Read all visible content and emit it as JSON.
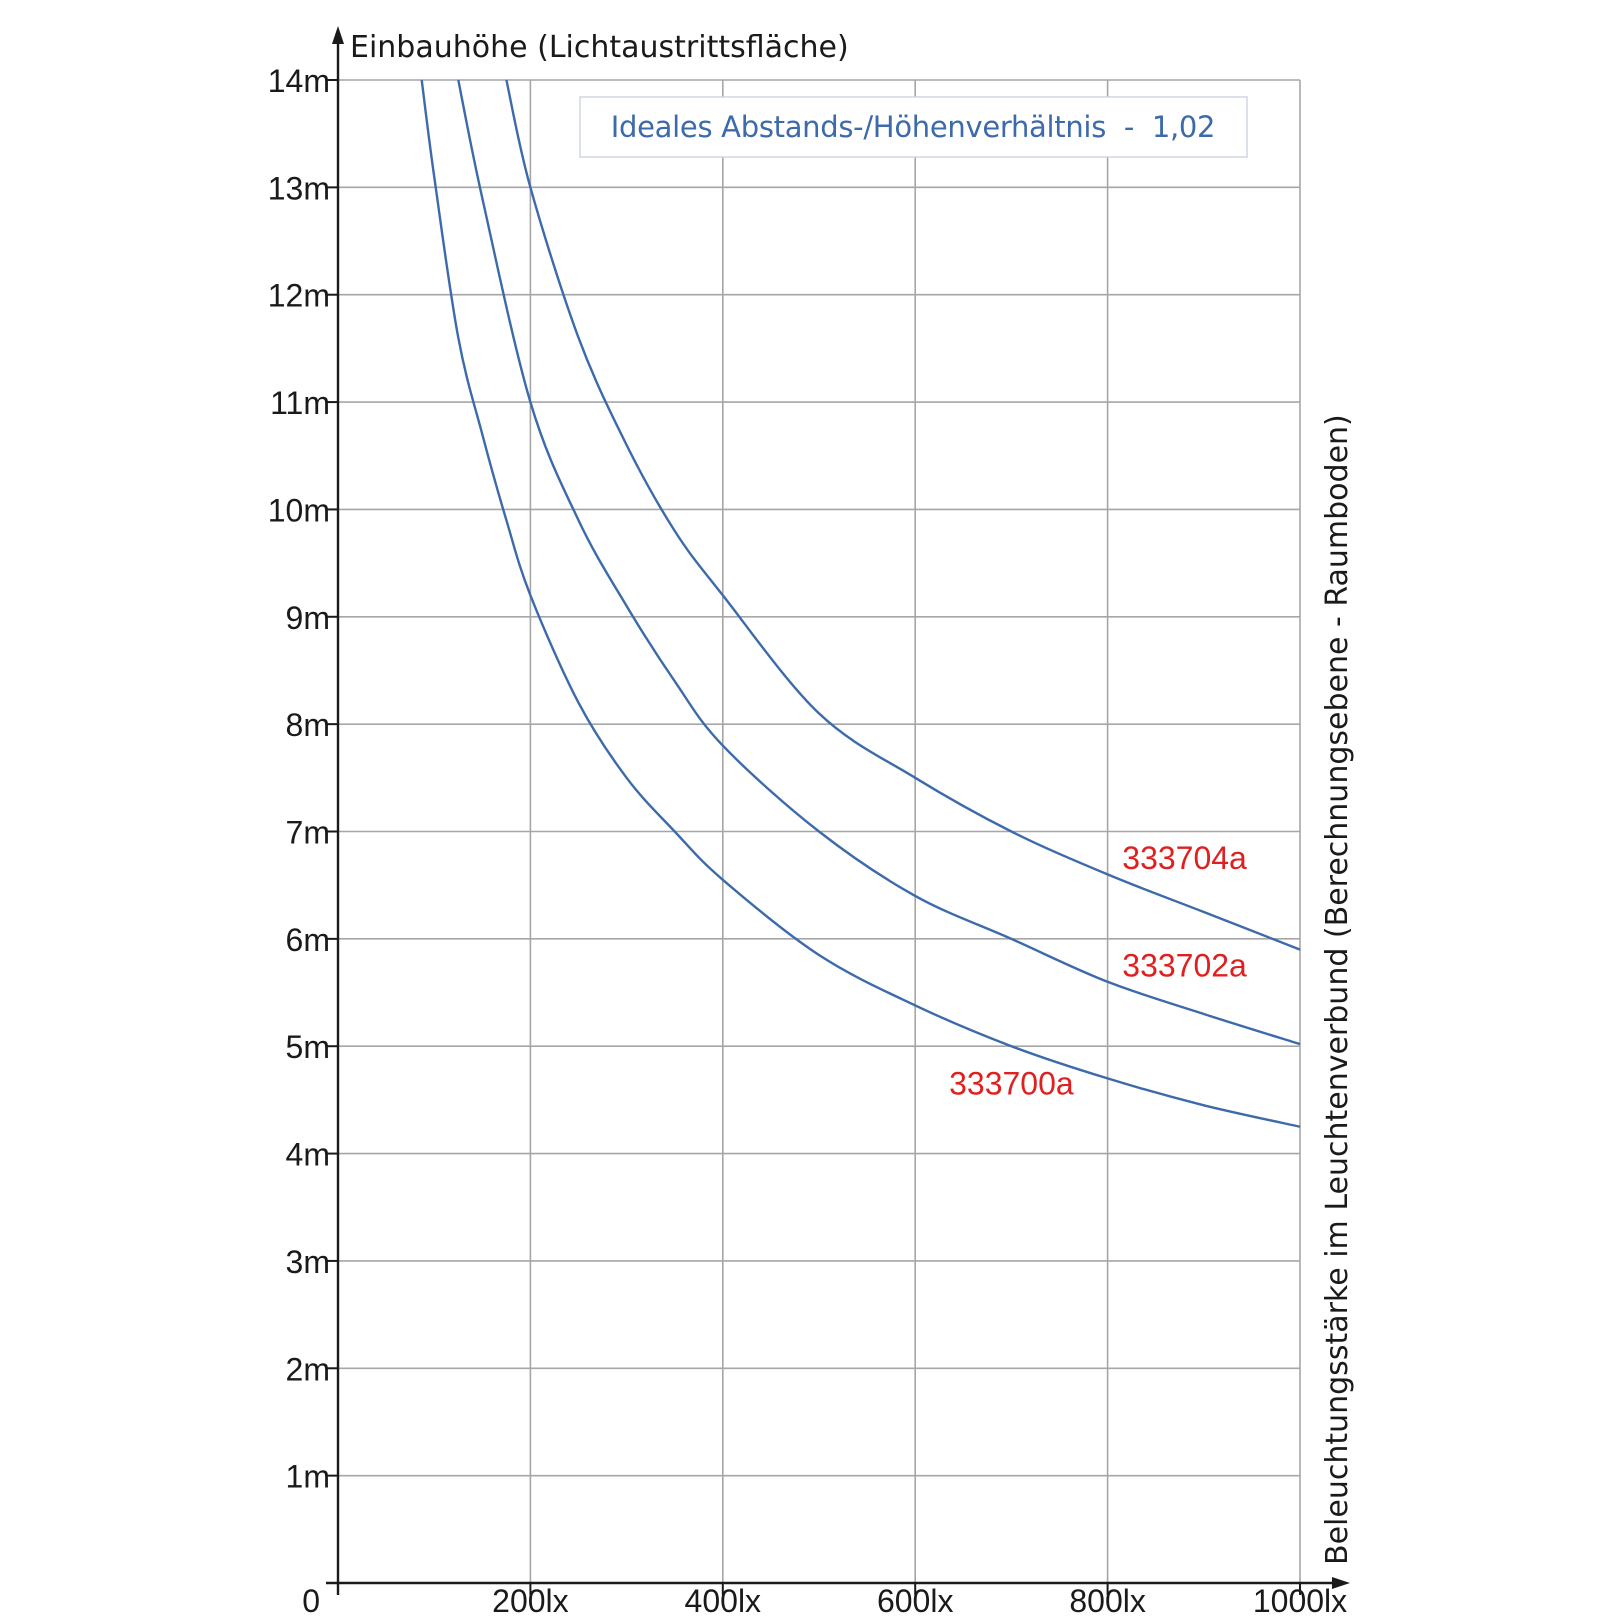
{
  "chart_data": {
    "type": "line",
    "title": "",
    "ylabel": "Einbauhöhe (Lichtaustrittsfläche)",
    "xlabel": "Beleuchtungsstärke im Leuchtenverbund (Berechnungsebene - Raumboden)",
    "origin_label": "0",
    "note": "Ideales Abstands-/Höhenverhältnis  -  1,02",
    "xlim": [
      0,
      1000
    ],
    "ylim": [
      0,
      14
    ],
    "x_ticks": [
      200,
      400,
      600,
      800,
      1000
    ],
    "x_tick_labels": [
      "200lx",
      "400lx",
      "600lx",
      "800lx",
      "1000lx"
    ],
    "y_ticks": [
      1,
      2,
      3,
      4,
      5,
      6,
      7,
      8,
      9,
      10,
      11,
      12,
      13,
      14
    ],
    "y_tick_labels": [
      "1m",
      "2m",
      "3m",
      "4m",
      "5m",
      "6m",
      "7m",
      "8m",
      "9m",
      "10m",
      "11m",
      "12m",
      "13m",
      "14m"
    ],
    "grid": true,
    "colors": {
      "line": "#3d6aaa",
      "label": "#e02020",
      "grid": "#a6a6a6",
      "axis": "#1a1a1a"
    },
    "series": [
      {
        "name": "333704a",
        "x": [
          175,
          200,
          250,
          300,
          350,
          400,
          500,
          600,
          700,
          800,
          900,
          1000
        ],
        "y": [
          14.0,
          13.0,
          11.6,
          10.6,
          9.8,
          9.2,
          8.1,
          7.5,
          7.0,
          6.6,
          6.25,
          5.9
        ]
      },
      {
        "name": "333702a",
        "x": [
          125,
          150,
          200,
          250,
          300,
          350,
          400,
          500,
          600,
          700,
          800,
          900,
          1000
        ],
        "y": [
          14.0,
          12.9,
          11.0,
          9.9,
          9.1,
          8.4,
          7.8,
          7.0,
          6.4,
          6.0,
          5.6,
          5.3,
          5.02
        ]
      },
      {
        "name": "333700a",
        "x": [
          87,
          100,
          125,
          150,
          175,
          200,
          250,
          300,
          350,
          400,
          500,
          600,
          700,
          800,
          900,
          1000
        ],
        "y": [
          14.0,
          13.1,
          11.6,
          10.7,
          9.9,
          9.2,
          8.2,
          7.5,
          7.0,
          6.55,
          5.85,
          5.38,
          5.0,
          4.7,
          4.45,
          4.25
        ]
      }
    ]
  }
}
